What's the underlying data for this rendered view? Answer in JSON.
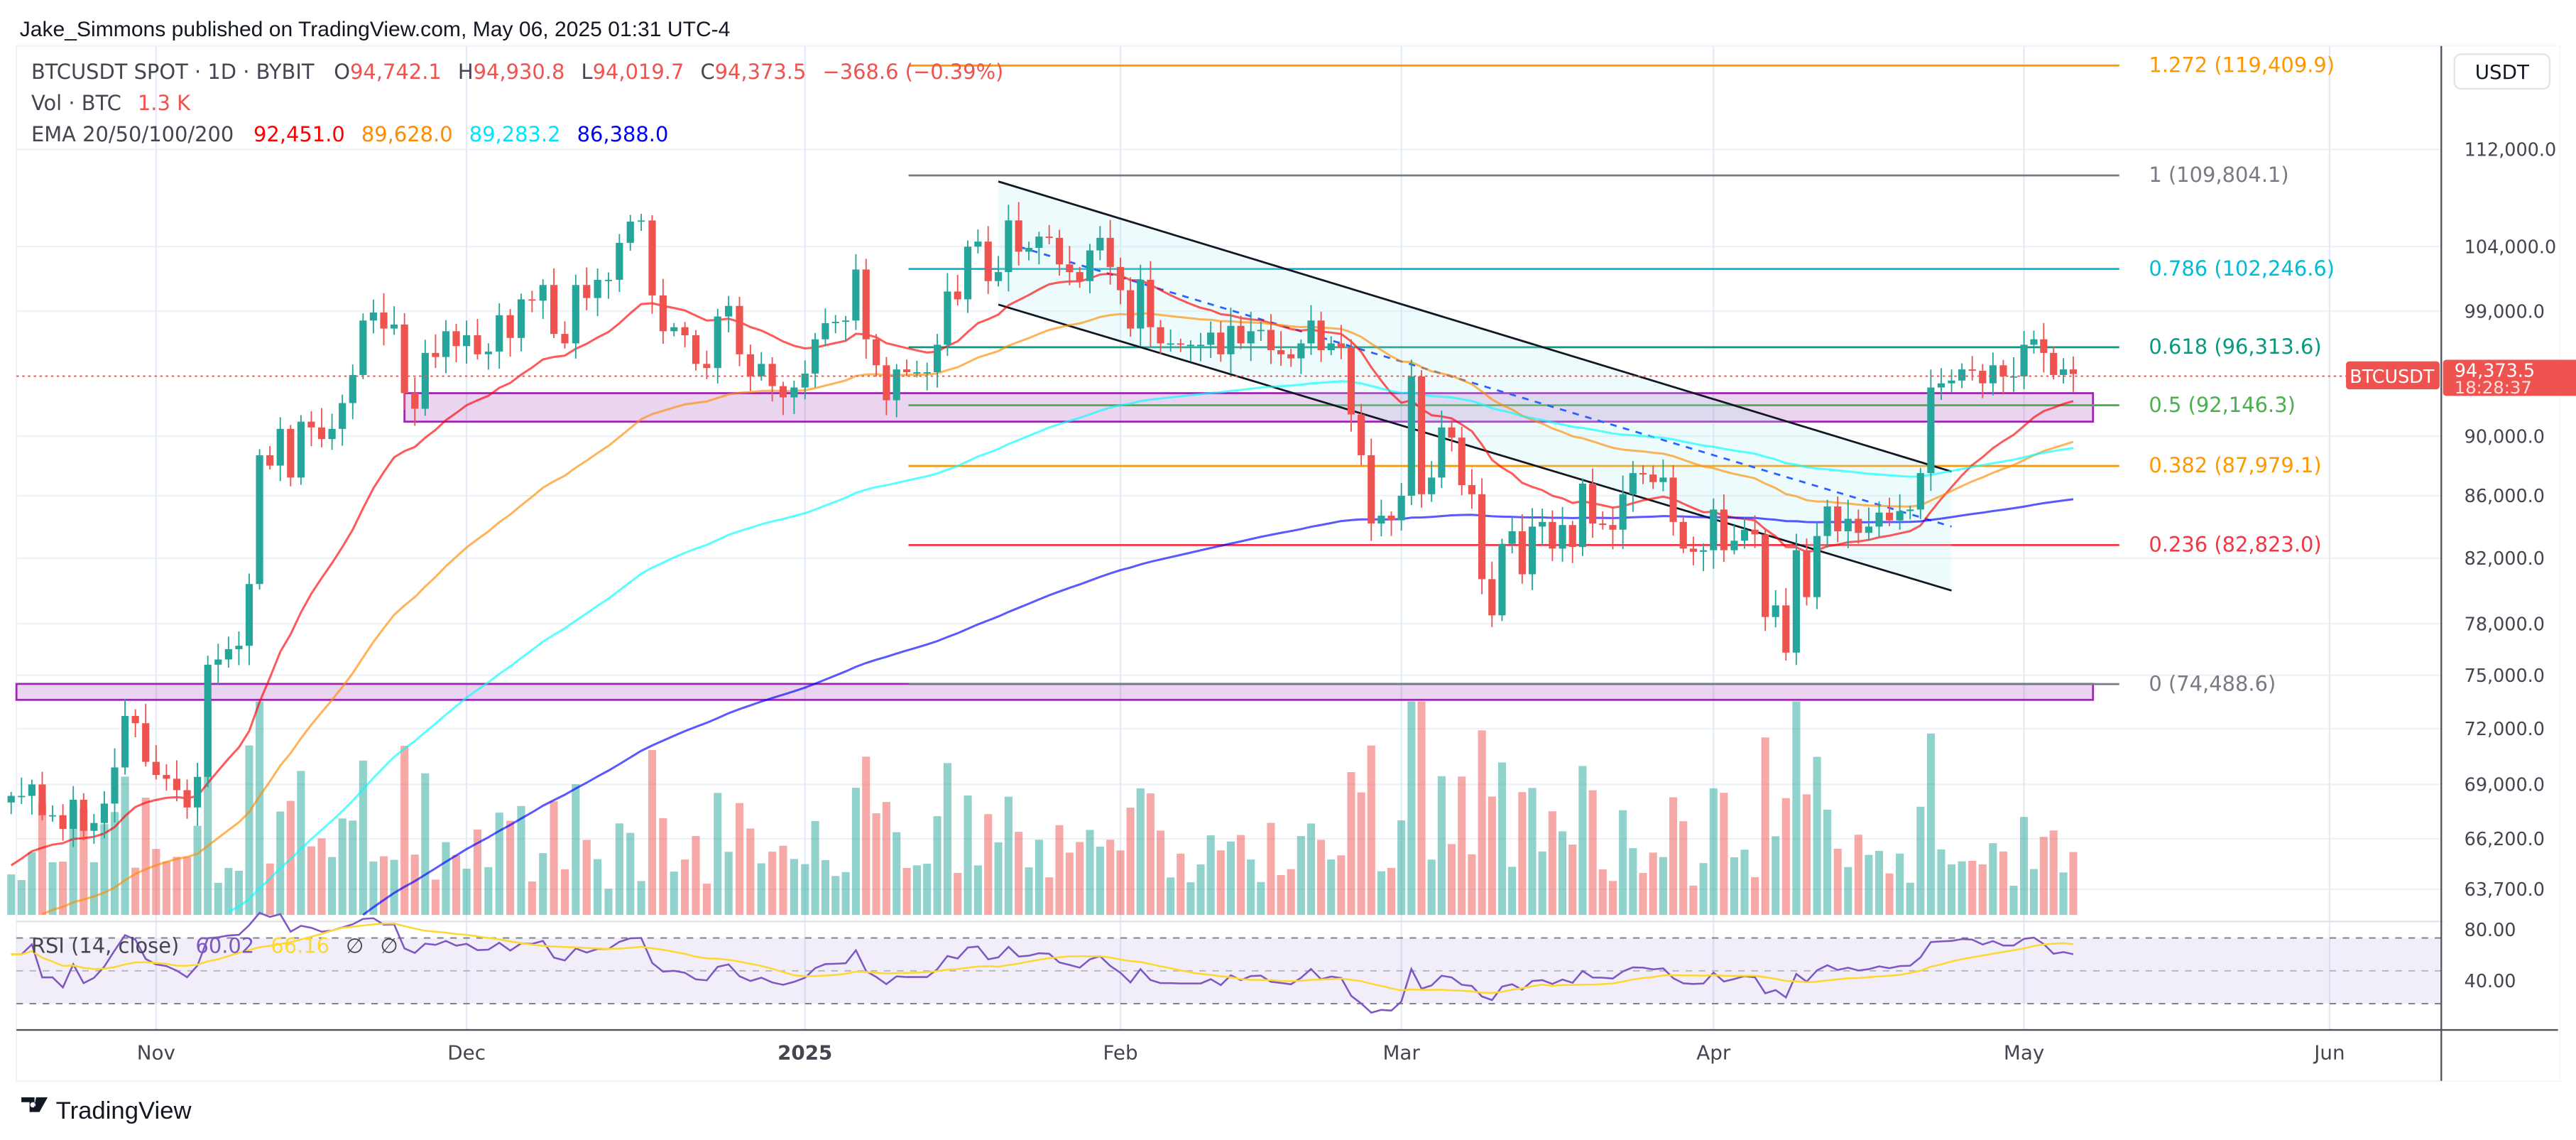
{
  "header": {
    "published": "Jake_Simmons published on TradingView.com, May 06, 2025 01:31 UTC-4"
  },
  "legend": {
    "symbol": "BTCUSDT SPOT · 1D · BYBIT",
    "o_label": "O",
    "o": "94,742.1",
    "h_label": "H",
    "h": "94,930.8",
    "l_label": "L",
    "l": "94,019.7",
    "c_label": "C",
    "c": "94,373.5",
    "change": "−368.6 (−0.39%)",
    "vol_label": "Vol · BTC",
    "vol": "1.3 K",
    "ema_label": "EMA 20/50/100/200",
    "ema20": "92,451.0",
    "ema50": "89,628.0",
    "ema100": "89,283.2",
    "ema200": "86,388.0",
    "rsi_label": "RSI (14, close)",
    "rsi": "60.02",
    "rsi_ma": "66.16",
    "rsi_na1": "∅",
    "rsi_na2": "∅"
  },
  "colors": {
    "up": "#26a69a",
    "down": "#ef5350",
    "ema20": "#ff0000",
    "ema50": "#ff8c00",
    "ema100": "#00ffff",
    "ema200": "#0000ff",
    "rsi": "#7e57c2",
    "rsi_ma": "#fdd835",
    "zone": "#9c27b0"
  },
  "price_axis": {
    "currency": "USDT",
    "last_price": "94,373.5",
    "countdown": "18:28:37",
    "symbol_tag": "BTCUSDT"
  },
  "footer": {
    "brand": "TradingView"
  },
  "chart_data": {
    "type": "candlestick",
    "title": "BTCUSDT SPOT · 1D · BYBIT",
    "y_scale": "log",
    "grid": true,
    "x_start": "2024-10-18",
    "x_end": "2025-05-06",
    "x_ticks": [
      {
        "label": "Nov",
        "date": "2024-11-01"
      },
      {
        "label": "Dec",
        "date": "2024-12-01"
      },
      {
        "label": "2025",
        "date": "2025-01-01"
      },
      {
        "label": "Feb",
        "date": "2025-02-01"
      },
      {
        "label": "Mar",
        "date": "2025-03-01"
      },
      {
        "label": "Apr",
        "date": "2025-04-01"
      },
      {
        "label": "May",
        "date": "2025-05-01"
      },
      {
        "label": "Jun",
        "date": "2025-06-01"
      }
    ],
    "y_ticks": [
      112000,
      104000,
      99000,
      90000,
      86000,
      82000,
      78000,
      75000,
      72000,
      69000,
      66200,
      63700
    ],
    "y_tick_labels": [
      "112,000.0",
      "104,000.0",
      "99,000.0",
      "90,000.0",
      "86,000.0",
      "82,000.0",
      "78,000.0",
      "75,000.0",
      "72,000.0",
      "69,000.0",
      "66,200.0",
      "63,700.0"
    ],
    "rsi_ticks": [
      "80.00",
      "40.00"
    ],
    "closes": [
      68400,
      68400,
      69000,
      67400,
      67400,
      66700,
      68200,
      66600,
      67000,
      68000,
      69900,
      72700,
      72300,
      70200,
      69500,
      69300,
      68700,
      67800,
      69400,
      75600,
      75900,
      76500,
      76700,
      80400,
      88700,
      88000,
      90500,
      87200,
      91000,
      90600,
      89800,
      90500,
      92300,
      94300,
      98300,
      98900,
      97700,
      98000,
      93000,
      91900,
      95900,
      95600,
      97500,
      96400,
      97200,
      95800,
      96000,
      98700,
      97000,
      99900,
      99800,
      101000,
      97300,
      96600,
      101000,
      100000,
      101400,
      101400,
      104300,
      106000,
      106100,
      100200,
      97500,
      97800,
      97200,
      95100,
      94800,
      98600,
      99400,
      95800,
      94200,
      95100,
      93500,
      92700,
      93400,
      94400,
      96900,
      98100,
      98200,
      98300,
      102200,
      96900,
      95000,
      92500,
      94700,
      94500,
      94500,
      94500,
      96500,
      100500,
      99900,
      104000,
      104400,
      101300,
      102000,
      106100,
      103600,
      103900,
      104800,
      104700,
      102600,
      102000,
      101300,
      103700,
      104700,
      102400,
      100600,
      97700,
      101400,
      97800,
      96600,
      96600,
      96500,
      96500,
      96500,
      97400,
      95800,
      97900,
      96600,
      97500,
      97600,
      96100,
      95800,
      95500,
      96600,
      98300,
      96100,
      96600,
      96300,
      91500,
      88700,
      84200,
      84700,
      84400,
      86000,
      94200,
      86100,
      87200,
      90600,
      89900,
      86700,
      86100,
      80700,
      78500,
      82900,
      83700,
      81000,
      84000,
      84300,
      82600,
      84100,
      82700,
      86800,
      84200,
      84100,
      83800,
      86100,
      87500,
      87400,
      86900,
      87200,
      84300,
      82600,
      82400,
      82500,
      85100,
      82500,
      83100,
      83800,
      83500,
      78400,
      79100,
      76300,
      82500,
      79600,
      83400,
      85300,
      83700,
      84500,
      83600,
      84000,
      84900,
      84400,
      85000,
      85100,
      87500,
      93400,
      93700,
      93900,
      94700,
      94600,
      93700,
      95000,
      94200,
      94200,
      96500,
      96900,
      95900,
      94300,
      94700,
      94373.5
    ],
    "fib_levels": [
      {
        "ratio": "1.272",
        "price": 119409.9,
        "label": "1.272 (119,409.9)",
        "color": "#ff9800"
      },
      {
        "ratio": "1",
        "price": 109804.1,
        "label": "1 (109,804.1)",
        "color": "#787b86"
      },
      {
        "ratio": "0.786",
        "price": 102246.6,
        "label": "0.786 (102,246.6)",
        "color": "#00bcd4"
      },
      {
        "ratio": "0.618",
        "price": 96313.6,
        "label": "0.618 (96,313.6)",
        "color": "#089981"
      },
      {
        "ratio": "0.5",
        "price": 92146.3,
        "label": "0.5 (92,146.3)",
        "color": "#4caf50"
      },
      {
        "ratio": "0.382",
        "price": 87979.1,
        "label": "0.382 (87,979.1)",
        "color": "#ff9800"
      },
      {
        "ratio": "0.236",
        "price": 82823.0,
        "label": "0.236 (82,823.0)",
        "color": "#f23645"
      },
      {
        "ratio": "0",
        "price": 74488.6,
        "label": "0 (74,488.6)",
        "color": "#787b86"
      }
    ],
    "zones": [
      {
        "from": "2024-11-25",
        "to": "2025-05-08",
        "low": 91000,
        "high": 93000
      },
      {
        "from": "2024-10-18",
        "to": "2025-05-08",
        "low": 73600,
        "high": 74500
      }
    ],
    "channel": {
      "upper": [
        {
          "date": "2025-01-20",
          "price": 109300
        },
        {
          "date": "2025-04-24",
          "price": 87600
        }
      ],
      "lower": [
        {
          "date": "2025-01-20",
          "price": 99500
        },
        {
          "date": "2025-04-24",
          "price": 80000
        }
      ],
      "midline": [
        {
          "date": "2025-01-22",
          "price": 104000
        },
        {
          "date": "2025-04-24",
          "price": 84000
        }
      ]
    }
  }
}
